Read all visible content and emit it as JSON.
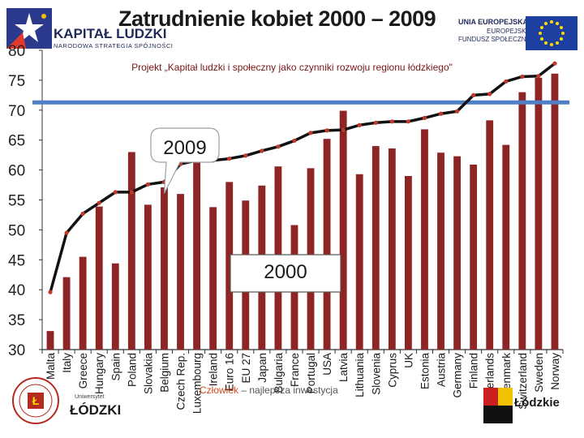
{
  "header": {
    "title": "Zatrudnienie kobiet 2000 – 2009",
    "subtitle": "Projekt „Kapitał ludzki i społeczny jako czynniki rozwoju regionu łódzkiego\"",
    "left_logo": {
      "brand": "KAPITAŁ LUDZKI",
      "tagline": "NARODOWA STRATEGIA SPÓJNOŚCI",
      "icon": "kapital-ludzki-star-logo"
    },
    "right_logo": {
      "line1": "UNIA EUROPEJSKA",
      "line2": "EUROPEJSKI",
      "line3": "FUNDUSZ SPOŁECZNY",
      "icon": "eu-flag-logo"
    }
  },
  "footer": {
    "left_small": "Uniwersytet",
    "left_big": "ŁÓDZKI",
    "center_accent": "Człowiek",
    "center_rest": " – najlepsza inwestycja",
    "right": "Łódzkie"
  },
  "colors": {
    "bar": "#8e2525",
    "line": "#111111",
    "reference": "#4f7fc4",
    "axis": "#333333"
  },
  "chart_data": {
    "type": "bar",
    "title": "Zatrudnienie kobiet 2000 – 2009",
    "xlabel": "",
    "ylabel": "",
    "ylim": [
      30,
      80
    ],
    "yticks": [
      30,
      35,
      40,
      45,
      50,
      55,
      60,
      65,
      70,
      75,
      80
    ],
    "grid": false,
    "categories": [
      "Malta",
      "Italy",
      "Greece",
      "Hungary",
      "Spain",
      "Poland",
      "Slovakia",
      "Belgium",
      "Czech Rep.",
      "Luxembourg",
      "Ireland",
      "Euro 16",
      "EU 27",
      "Japan",
      "Bulgaria",
      "France",
      "Portugal",
      "USA",
      "Latvia",
      "Lithuania",
      "Slovenia",
      "Cyprus",
      "UK",
      "Estonia",
      "Austria",
      "Germany",
      "Finland",
      "Netherlands",
      "Denmark",
      "Switzerland",
      "Sweden",
      "Norway"
    ],
    "series": [
      {
        "type": "bar",
        "values": [
          33.1,
          42.1,
          45.5,
          53.9,
          44.4,
          63.0,
          54.2,
          57.1,
          56.0,
          61.8,
          53.8,
          58.0,
          54.9,
          57.4,
          60.6,
          50.8,
          60.3,
          65.2,
          69.9,
          59.3,
          64.0,
          63.6,
          59.0,
          66.8,
          62.9,
          62.3,
          60.9,
          68.3,
          64.2,
          73.0,
          75.4,
          76.1
        ]
      },
      {
        "type": "line",
        "values": [
          39.6,
          49.5,
          52.7,
          54.5,
          56.3,
          56.3,
          57.6,
          58.0,
          61.0,
          61.6,
          61.6,
          61.9,
          62.4,
          63.2,
          63.9,
          64.9,
          66.2,
          66.6,
          66.7,
          67.5,
          67.9,
          68.1,
          68.1,
          68.7,
          69.4,
          69.8,
          72.5,
          72.7,
          74.8,
          75.6,
          75.7,
          77.8
        ]
      }
    ],
    "reference_line": {
      "value": 71.3
    },
    "annotations": [
      {
        "text": "2009",
        "points_to": "Belgium"
      },
      {
        "text": "2000",
        "near": "EU 27"
      }
    ]
  }
}
